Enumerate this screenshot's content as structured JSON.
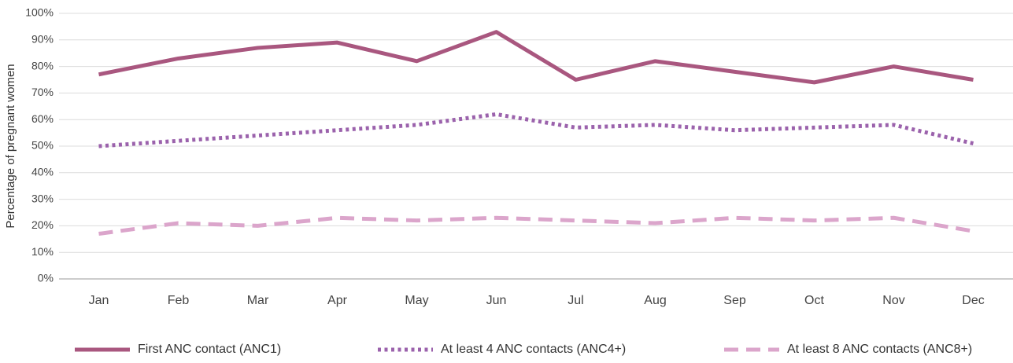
{
  "chart_data": {
    "type": "line",
    "y_label": "Percentage of pregnant women",
    "categories": [
      "Jan",
      "Feb",
      "Mar",
      "Apr",
      "May",
      "Jun",
      "Jul",
      "Aug",
      "Sep",
      "Oct",
      "Nov",
      "Dec"
    ],
    "series": [
      {
        "name": "First ANC contact (ANC1)",
        "color": "#a9577f",
        "dash": "solid",
        "values": [
          77,
          83,
          87,
          89,
          82,
          93,
          75,
          82,
          78,
          74,
          80,
          75
        ]
      },
      {
        "name": "At least 4 ANC contacts (ANC4+)",
        "color": "#9b62ac",
        "dash": "dotted",
        "values": [
          50,
          52,
          54,
          56,
          58,
          62,
          57,
          58,
          56,
          57,
          58,
          51
        ]
      },
      {
        "name": "At least 8 ANC contacts (ANC8+)",
        "color": "#dba5cb",
        "dash": "dashed",
        "values": [
          17,
          21,
          20,
          23,
          22,
          23,
          22,
          21,
          23,
          22,
          23,
          18
        ]
      }
    ],
    "ylim": [
      0,
      100
    ],
    "yticks": [
      {
        "value": 0,
        "label": "0%"
      },
      {
        "value": 10,
        "label": "10%"
      },
      {
        "value": 20,
        "label": "20%"
      },
      {
        "value": 30,
        "label": "30%"
      },
      {
        "value": 40,
        "label": "40%"
      },
      {
        "value": 50,
        "label": "50%"
      },
      {
        "value": 60,
        "label": "60%"
      },
      {
        "value": 70,
        "label": "70%"
      },
      {
        "value": 80,
        "label": "80%"
      },
      {
        "value": 90,
        "label": "90%"
      },
      {
        "value": 100,
        "label": "100%"
      }
    ],
    "grid": true,
    "legend": "bottom"
  }
}
